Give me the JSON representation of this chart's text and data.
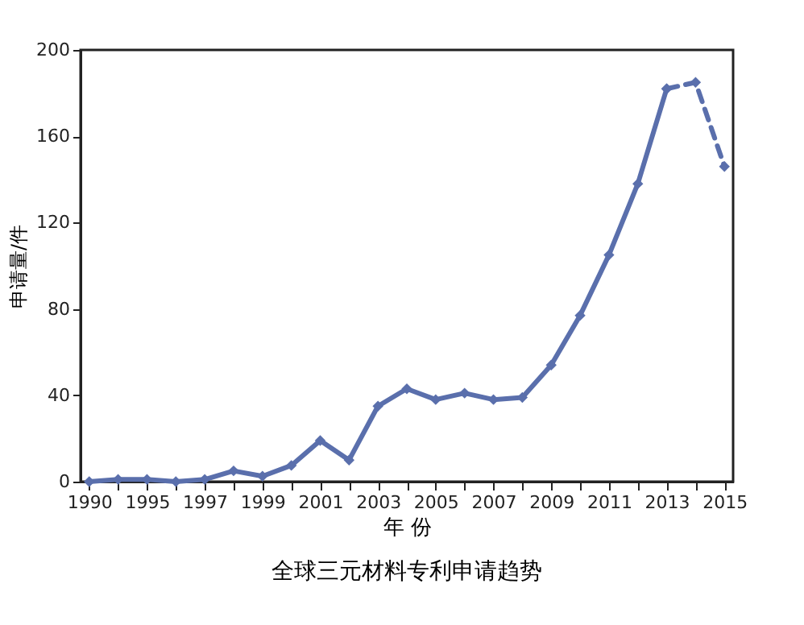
{
  "chart_data": {
    "type": "line",
    "title": "全球三元材料专利申请趋势",
    "xlabel": "年 份",
    "ylabel": "申请量/件",
    "categories": [
      "1990",
      null,
      "1995",
      null,
      "1997",
      null,
      "1999",
      null,
      "2001",
      null,
      "2003",
      null,
      "2005",
      null,
      "2007",
      null,
      "2009",
      null,
      "2011",
      null,
      "2013",
      null,
      "2015"
    ],
    "series": [
      {
        "color": "#5a6fac",
        "line_style": "solid",
        "values": [
          0,
          1,
          1,
          0,
          1,
          5,
          2.5,
          7.5,
          19,
          10,
          35,
          43,
          38,
          41,
          38,
          39,
          54,
          77,
          105,
          138,
          182,
          null,
          null
        ]
      },
      {
        "color": "#5a6fac",
        "line_style": "dashed",
        "values": [
          null,
          null,
          null,
          null,
          null,
          null,
          null,
          null,
          null,
          null,
          null,
          null,
          null,
          null,
          null,
          null,
          null,
          null,
          null,
          null,
          182,
          185,
          146
        ]
      }
    ],
    "ylim": [
      0,
      200
    ],
    "yticks": [
      0,
      40,
      80,
      120,
      160,
      200
    ],
    "grid": false,
    "marker": "diamond"
  }
}
